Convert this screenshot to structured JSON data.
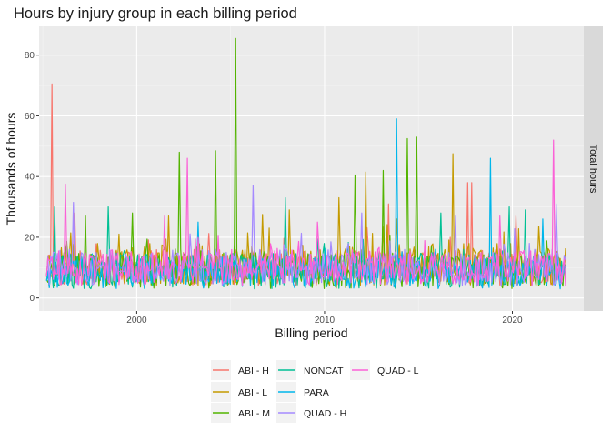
{
  "chart_data": {
    "type": "line",
    "title": "Hours by injury group in each billing period",
    "xlabel": "Billing period",
    "ylabel": "Thousands of hours",
    "facet_label": "Total hours",
    "xlim": [
      1994.8,
      2023.8
    ],
    "ylim": [
      -4.3,
      89.5
    ],
    "x_ticks": [
      2000,
      2010,
      2020
    ],
    "y_ticks": [
      0,
      20,
      40,
      60,
      80
    ],
    "grid": true,
    "legend_position": "bottom",
    "period": {
      "start": 1995.2,
      "end": 2022.9,
      "step": 0.0714
    },
    "series": [
      {
        "name": "ABI - H",
        "color": "#F8766D",
        "base": 10,
        "amp": 6,
        "seed": 11,
        "peaks": [
          [
            1995.5,
            70.5
          ],
          [
            1996.7,
            28
          ],
          [
            2013.4,
            31
          ],
          [
            2017.6,
            38
          ],
          [
            2017.8,
            38
          ],
          [
            2020.2,
            27
          ]
        ]
      },
      {
        "name": "ABI - L",
        "color": "#C49A00",
        "base": 11,
        "amp": 7,
        "seed": 23,
        "peaks": [
          [
            2001.7,
            27
          ],
          [
            2006.7,
            27.5
          ],
          [
            2008.1,
            29
          ],
          [
            2010.8,
            33
          ],
          [
            2012.2,
            41.5
          ],
          [
            2016.8,
            47.5
          ],
          [
            2013.8,
            26
          ]
        ]
      },
      {
        "name": "ABI - M",
        "color": "#53B400",
        "base": 9,
        "amp": 6,
        "seed": 37,
        "peaks": [
          [
            1997.3,
            27
          ],
          [
            1999.8,
            28
          ],
          [
            2002.3,
            48
          ],
          [
            2004.2,
            48.5
          ],
          [
            2005.3,
            85.5
          ],
          [
            2011.6,
            40.5
          ],
          [
            2013.1,
            42
          ],
          [
            2014.9,
            53
          ],
          [
            2014.4,
            52.5
          ]
        ]
      },
      {
        "name": "NONCAT",
        "color": "#00C094",
        "base": 9,
        "amp": 6,
        "seed": 49,
        "peaks": [
          [
            1995.6,
            30
          ],
          [
            1998.5,
            30
          ],
          [
            2007.9,
            33
          ],
          [
            2016.2,
            28
          ],
          [
            2019.8,
            30
          ],
          [
            2020.7,
            29
          ]
        ]
      },
      {
        "name": "PARA",
        "color": "#00B6EB",
        "base": 8,
        "amp": 5,
        "seed": 61,
        "peaks": [
          [
            2003.3,
            25
          ],
          [
            2013.8,
            59
          ],
          [
            2018.8,
            46
          ],
          [
            2021.6,
            26
          ]
        ]
      },
      {
        "name": "QUAD - H",
        "color": "#A58AFF",
        "base": 10,
        "amp": 6,
        "seed": 73,
        "peaks": [
          [
            1996.6,
            31.5
          ],
          [
            2006.2,
            37
          ],
          [
            2012.0,
            28
          ],
          [
            2017.0,
            27
          ],
          [
            2022.3,
            31
          ]
        ]
      },
      {
        "name": "QUAD - L",
        "color": "#FB61D7",
        "base": 10,
        "amp": 6,
        "seed": 89,
        "peaks": [
          [
            1996.2,
            37.5
          ],
          [
            2001.5,
            27
          ],
          [
            2002.7,
            46
          ],
          [
            2009.6,
            25
          ],
          [
            2019.3,
            27
          ],
          [
            2022.2,
            52
          ]
        ]
      }
    ]
  }
}
